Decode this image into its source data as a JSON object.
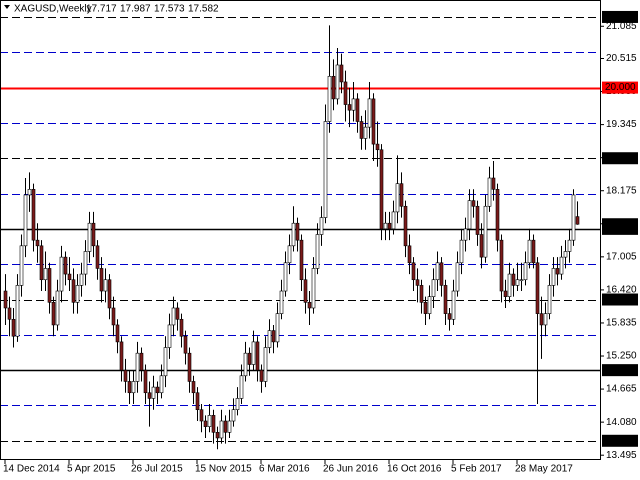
{
  "chart_data": {
    "type": "candlestick",
    "title": "XAGUSD,Weekly",
    "categories": [
      "14 Dec 2014",
      null,
      null,
      null,
      null,
      null,
      null,
      null,
      null,
      null,
      null,
      null,
      null,
      null,
      null,
      null,
      "5 Apr 2015",
      null,
      null,
      null,
      null,
      null,
      null,
      null,
      null,
      null,
      null,
      null,
      null,
      null,
      null,
      null,
      "26 Jul 2015",
      null,
      null,
      null,
      null,
      null,
      null,
      null,
      null,
      null,
      null,
      null,
      null,
      null,
      null,
      null,
      "15 Nov 2015",
      null,
      null,
      null,
      null,
      null,
      null,
      null,
      null,
      null,
      null,
      null,
      null,
      null,
      null,
      null,
      "6 Mar 2016",
      null,
      null,
      null,
      null,
      null,
      null,
      null,
      null,
      null,
      null,
      null,
      null,
      null,
      null,
      null,
      "26 Jun 2016",
      null,
      null,
      null,
      null,
      null,
      null,
      null,
      null,
      null,
      null,
      null,
      null,
      null,
      null,
      null,
      "16 Oct 2016",
      null,
      null,
      null,
      null,
      null,
      null,
      null,
      null,
      null,
      null,
      null,
      null,
      null,
      null,
      null,
      "5 Feb 2017",
      null,
      null,
      null,
      null,
      null,
      null,
      null,
      null,
      null,
      null,
      null,
      null,
      null,
      null,
      null,
      "28 May 2017",
      null,
      null,
      null,
      null,
      null,
      null,
      null,
      null,
      null,
      null,
      null,
      null,
      null,
      null,
      null
    ],
    "candles": [
      [
        16.4,
        16.7,
        15.8,
        16.1
      ],
      [
        16.1,
        16.3,
        15.6,
        15.9
      ],
      [
        15.9,
        16.1,
        15.4,
        15.6
      ],
      [
        15.6,
        16.7,
        15.5,
        16.5
      ],
      [
        16.5,
        17.4,
        16.3,
        17.2
      ],
      [
        17.2,
        18.4,
        17.0,
        18.1
      ],
      [
        18.1,
        18.5,
        17.8,
        18.2
      ],
      [
        18.2,
        18.3,
        17.1,
        17.3
      ],
      [
        17.3,
        17.6,
        16.9,
        17.2
      ],
      [
        17.2,
        17.3,
        16.4,
        16.6
      ],
      [
        16.6,
        17.1,
        16.4,
        16.8
      ],
      [
        16.8,
        16.9,
        16.0,
        16.2
      ],
      [
        16.2,
        16.3,
        15.6,
        15.8
      ],
      [
        15.8,
        16.6,
        15.7,
        16.4
      ],
      [
        16.4,
        17.2,
        16.2,
        17.0
      ],
      [
        17.0,
        17.1,
        16.5,
        16.7
      ],
      [
        16.7,
        17.0,
        16.4,
        16.6
      ],
      [
        16.6,
        16.8,
        16.0,
        16.2
      ],
      [
        16.2,
        16.7,
        16.0,
        16.5
      ],
      [
        16.5,
        16.9,
        16.3,
        16.7
      ],
      [
        16.7,
        17.3,
        16.5,
        17.1
      ],
      [
        17.1,
        17.8,
        16.9,
        17.6
      ],
      [
        17.6,
        17.8,
        17.0,
        17.2
      ],
      [
        17.2,
        17.3,
        16.6,
        16.8
      ],
      [
        16.8,
        17.0,
        16.2,
        16.4
      ],
      [
        16.4,
        16.8,
        16.2,
        16.6
      ],
      [
        16.6,
        16.7,
        15.9,
        16.1
      ],
      [
        16.1,
        16.3,
        15.6,
        15.8
      ],
      [
        15.8,
        15.9,
        15.3,
        15.5
      ],
      [
        15.5,
        15.6,
        14.8,
        15.0
      ],
      [
        15.0,
        15.2,
        14.6,
        14.8
      ],
      [
        14.8,
        15.0,
        14.4,
        14.6
      ],
      [
        14.6,
        15.0,
        14.4,
        14.8
      ],
      [
        14.8,
        15.5,
        14.6,
        15.3
      ],
      [
        15.3,
        15.4,
        14.8,
        15.0
      ],
      [
        15.0,
        15.1,
        14.4,
        14.6
      ],
      [
        14.6,
        14.8,
        14.0,
        14.5
      ],
      [
        14.5,
        14.9,
        14.3,
        14.7
      ],
      [
        14.7,
        14.8,
        14.4,
        14.6
      ],
      [
        14.6,
        15.1,
        14.5,
        14.9
      ],
      [
        14.9,
        15.6,
        14.7,
        15.4
      ],
      [
        15.4,
        16.0,
        15.2,
        15.8
      ],
      [
        15.8,
        16.3,
        15.6,
        16.1
      ],
      [
        16.1,
        16.2,
        15.7,
        15.9
      ],
      [
        15.9,
        16.0,
        15.4,
        15.6
      ],
      [
        15.6,
        15.7,
        15.1,
        15.3
      ],
      [
        15.3,
        15.4,
        14.6,
        14.8
      ],
      [
        14.8,
        14.9,
        14.4,
        14.6
      ],
      [
        14.6,
        14.7,
        14.1,
        14.3
      ],
      [
        14.3,
        14.4,
        13.9,
        14.1
      ],
      [
        14.1,
        14.2,
        13.8,
        14.0
      ],
      [
        14.0,
        14.4,
        13.9,
        14.2
      ],
      [
        14.2,
        14.3,
        13.7,
        13.9
      ],
      [
        13.9,
        14.0,
        13.6,
        13.8
      ],
      [
        13.8,
        14.3,
        13.7,
        14.1
      ],
      [
        14.1,
        14.2,
        13.7,
        13.9
      ],
      [
        13.9,
        14.3,
        13.8,
        14.1
      ],
      [
        14.1,
        14.5,
        14.0,
        14.3
      ],
      [
        14.3,
        14.7,
        14.2,
        14.5
      ],
      [
        14.5,
        15.1,
        14.4,
        14.9
      ],
      [
        14.9,
        15.5,
        14.8,
        15.3
      ],
      [
        15.3,
        15.4,
        14.9,
        15.1
      ],
      [
        15.1,
        15.7,
        15.0,
        15.5
      ],
      [
        15.5,
        15.6,
        14.8,
        15.0
      ],
      [
        15.0,
        15.1,
        14.6,
        14.8
      ],
      [
        14.8,
        15.6,
        14.7,
        15.4
      ],
      [
        15.4,
        15.9,
        15.3,
        15.7
      ],
      [
        15.7,
        15.8,
        15.3,
        15.5
      ],
      [
        15.5,
        16.2,
        15.4,
        16.0
      ],
      [
        16.0,
        16.6,
        15.9,
        16.4
      ],
      [
        16.4,
        17.1,
        16.3,
        16.9
      ],
      [
        16.9,
        17.4,
        16.7,
        17.2
      ],
      [
        17.2,
        17.9,
        17.1,
        17.6
      ],
      [
        17.6,
        17.7,
        17.1,
        17.3
      ],
      [
        17.3,
        17.4,
        16.4,
        16.6
      ],
      [
        16.6,
        16.8,
        16.0,
        16.2
      ],
      [
        16.2,
        16.4,
        15.8,
        16.1
      ],
      [
        16.1,
        17.0,
        16.0,
        16.8
      ],
      [
        16.8,
        17.6,
        16.7,
        17.4
      ],
      [
        17.4,
        17.9,
        17.2,
        17.7
      ],
      [
        17.7,
        19.7,
        17.6,
        19.4
      ],
      [
        19.4,
        21.1,
        19.2,
        20.2
      ],
      [
        20.2,
        20.5,
        19.6,
        19.8
      ],
      [
        19.8,
        20.7,
        19.7,
        20.4
      ],
      [
        20.4,
        20.6,
        19.9,
        20.1
      ],
      [
        20.1,
        20.3,
        19.4,
        19.7
      ],
      [
        19.7,
        20.0,
        19.3,
        19.6
      ],
      [
        19.6,
        20.1,
        19.4,
        19.8
      ],
      [
        19.8,
        19.9,
        19.2,
        19.4
      ],
      [
        19.4,
        19.5,
        18.9,
        19.1
      ],
      [
        19.1,
        19.6,
        18.9,
        19.3
      ],
      [
        19.3,
        20.1,
        19.1,
        19.8
      ],
      [
        19.8,
        19.9,
        18.7,
        19.0
      ],
      [
        19.0,
        19.4,
        18.6,
        18.9
      ],
      [
        18.9,
        19.0,
        17.3,
        17.5
      ],
      [
        17.5,
        17.8,
        17.3,
        17.6
      ],
      [
        17.6,
        17.8,
        17.3,
        17.5
      ],
      [
        17.5,
        18.0,
        17.4,
        17.8
      ],
      [
        17.8,
        18.8,
        17.6,
        18.3
      ],
      [
        18.3,
        18.5,
        17.7,
        17.9
      ],
      [
        17.9,
        18.0,
        17.0,
        17.2
      ],
      [
        17.2,
        17.4,
        16.7,
        16.9
      ],
      [
        16.9,
        17.0,
        16.4,
        16.6
      ],
      [
        16.6,
        16.8,
        16.2,
        16.5
      ],
      [
        16.5,
        16.6,
        16.0,
        16.2
      ],
      [
        16.2,
        16.3,
        15.8,
        16.0
      ],
      [
        16.0,
        16.5,
        15.9,
        16.3
      ],
      [
        16.3,
        16.8,
        16.1,
        16.6
      ],
      [
        16.6,
        17.1,
        16.4,
        16.9
      ],
      [
        16.9,
        17.0,
        16.3,
        16.5
      ],
      [
        16.5,
        16.6,
        15.8,
        16.0
      ],
      [
        16.0,
        16.1,
        15.7,
        15.9
      ],
      [
        15.9,
        16.6,
        15.8,
        16.4
      ],
      [
        16.4,
        17.1,
        16.3,
        16.9
      ],
      [
        16.9,
        17.5,
        16.7,
        17.3
      ],
      [
        17.3,
        17.7,
        17.1,
        17.5
      ],
      [
        17.5,
        18.2,
        17.3,
        18.0
      ],
      [
        18.0,
        18.2,
        17.7,
        17.9
      ],
      [
        17.9,
        18.0,
        17.2,
        17.4
      ],
      [
        17.4,
        17.6,
        16.8,
        17.0
      ],
      [
        17.0,
        18.1,
        16.9,
        17.9
      ],
      [
        17.9,
        18.6,
        17.8,
        18.4
      ],
      [
        18.4,
        18.7,
        18.0,
        18.2
      ],
      [
        18.2,
        18.3,
        17.1,
        17.3
      ],
      [
        17.3,
        17.4,
        16.2,
        16.4
      ],
      [
        16.4,
        16.6,
        16.1,
        16.3
      ],
      [
        16.3,
        16.9,
        16.2,
        16.7
      ],
      [
        16.7,
        16.8,
        16.3,
        16.5
      ],
      [
        16.5,
        16.9,
        16.4,
        16.6
      ],
      [
        16.6,
        16.9,
        16.4,
        16.6
      ],
      [
        16.6,
        17.1,
        16.5,
        16.9
      ],
      [
        16.9,
        17.5,
        16.8,
        17.3
      ],
      [
        17.3,
        17.4,
        16.8,
        16.9
      ],
      [
        16.9,
        17.0,
        14.4,
        16.0
      ],
      [
        16.0,
        16.3,
        15.2,
        15.8
      ],
      [
        15.8,
        16.2,
        15.6,
        16.0
      ],
      [
        16.0,
        16.7,
        15.9,
        16.5
      ],
      [
        16.5,
        17.0,
        16.3,
        16.8
      ],
      [
        16.8,
        17.0,
        16.5,
        16.7
      ],
      [
        16.7,
        17.2,
        16.6,
        17.0
      ],
      [
        17.0,
        17.3,
        16.8,
        17.1
      ],
      [
        17.1,
        17.5,
        16.9,
        17.3
      ],
      [
        17.3,
        18.2,
        17.2,
        18.1
      ],
      [
        17.717,
        17.987,
        17.573,
        17.582
      ]
    ],
    "up_color": "#ffffff",
    "down_color": "#7a1a1a",
    "outline_color": "#000000",
    "ylim": [
      13.41,
      21.55
    ],
    "yticks": [
      {
        "value": 21.085,
        "label": "21.085"
      },
      {
        "value": 20.515,
        "label": "20.515"
      },
      {
        "value": 19.93,
        "label": "19.930"
      },
      {
        "value": 19.345,
        "label": "19.345"
      },
      {
        "value": 18.76,
        "label": "18.760"
      },
      {
        "value": 18.175,
        "label": "18.175"
      },
      {
        "value": 17.59,
        "label": "17.590"
      },
      {
        "value": 17.005,
        "label": "17.005"
      },
      {
        "value": 16.42,
        "label": "16.420"
      },
      {
        "value": 15.835,
        "label": "15.835"
      },
      {
        "value": 15.25,
        "label": "15.250"
      },
      {
        "value": 14.665,
        "label": "14.665"
      },
      {
        "value": 14.08,
        "label": "14.080"
      },
      {
        "value": 13.495,
        "label": "13.495"
      }
    ],
    "grid": false,
    "levels": [
      {
        "value": 21.25,
        "label": "21.250",
        "color": "#000000",
        "style": "dash"
      },
      {
        "value": 20.625,
        "color": "#0000cc",
        "style": "dash"
      },
      {
        "value": 20.0,
        "label": "20.000",
        "color": "#ff0000",
        "style": "solid"
      },
      {
        "value": 19.375,
        "color": "#0000cc",
        "style": "dash"
      },
      {
        "value": 18.75,
        "label": "18.750",
        "color": "#000000",
        "style": "dash"
      },
      {
        "value": 18.125,
        "color": "#0000cc",
        "style": "dash"
      },
      {
        "value": 17.5,
        "label": "17.500",
        "color": "#000000",
        "style": "solid"
      },
      {
        "value": 16.875,
        "color": "#0000cc",
        "style": "dash"
      },
      {
        "value": 16.25,
        "label": "16.250",
        "color": "#000000",
        "style": "dash"
      },
      {
        "value": 15.625,
        "color": "#0000cc",
        "style": "dash"
      },
      {
        "value": 15.0,
        "label": "15.000",
        "color": "#000000",
        "style": "solid"
      },
      {
        "value": 14.375,
        "color": "#0000cc",
        "style": "dash"
      },
      {
        "value": 13.75,
        "label": "13.750",
        "color": "#000000",
        "style": "dash"
      }
    ]
  }
}
